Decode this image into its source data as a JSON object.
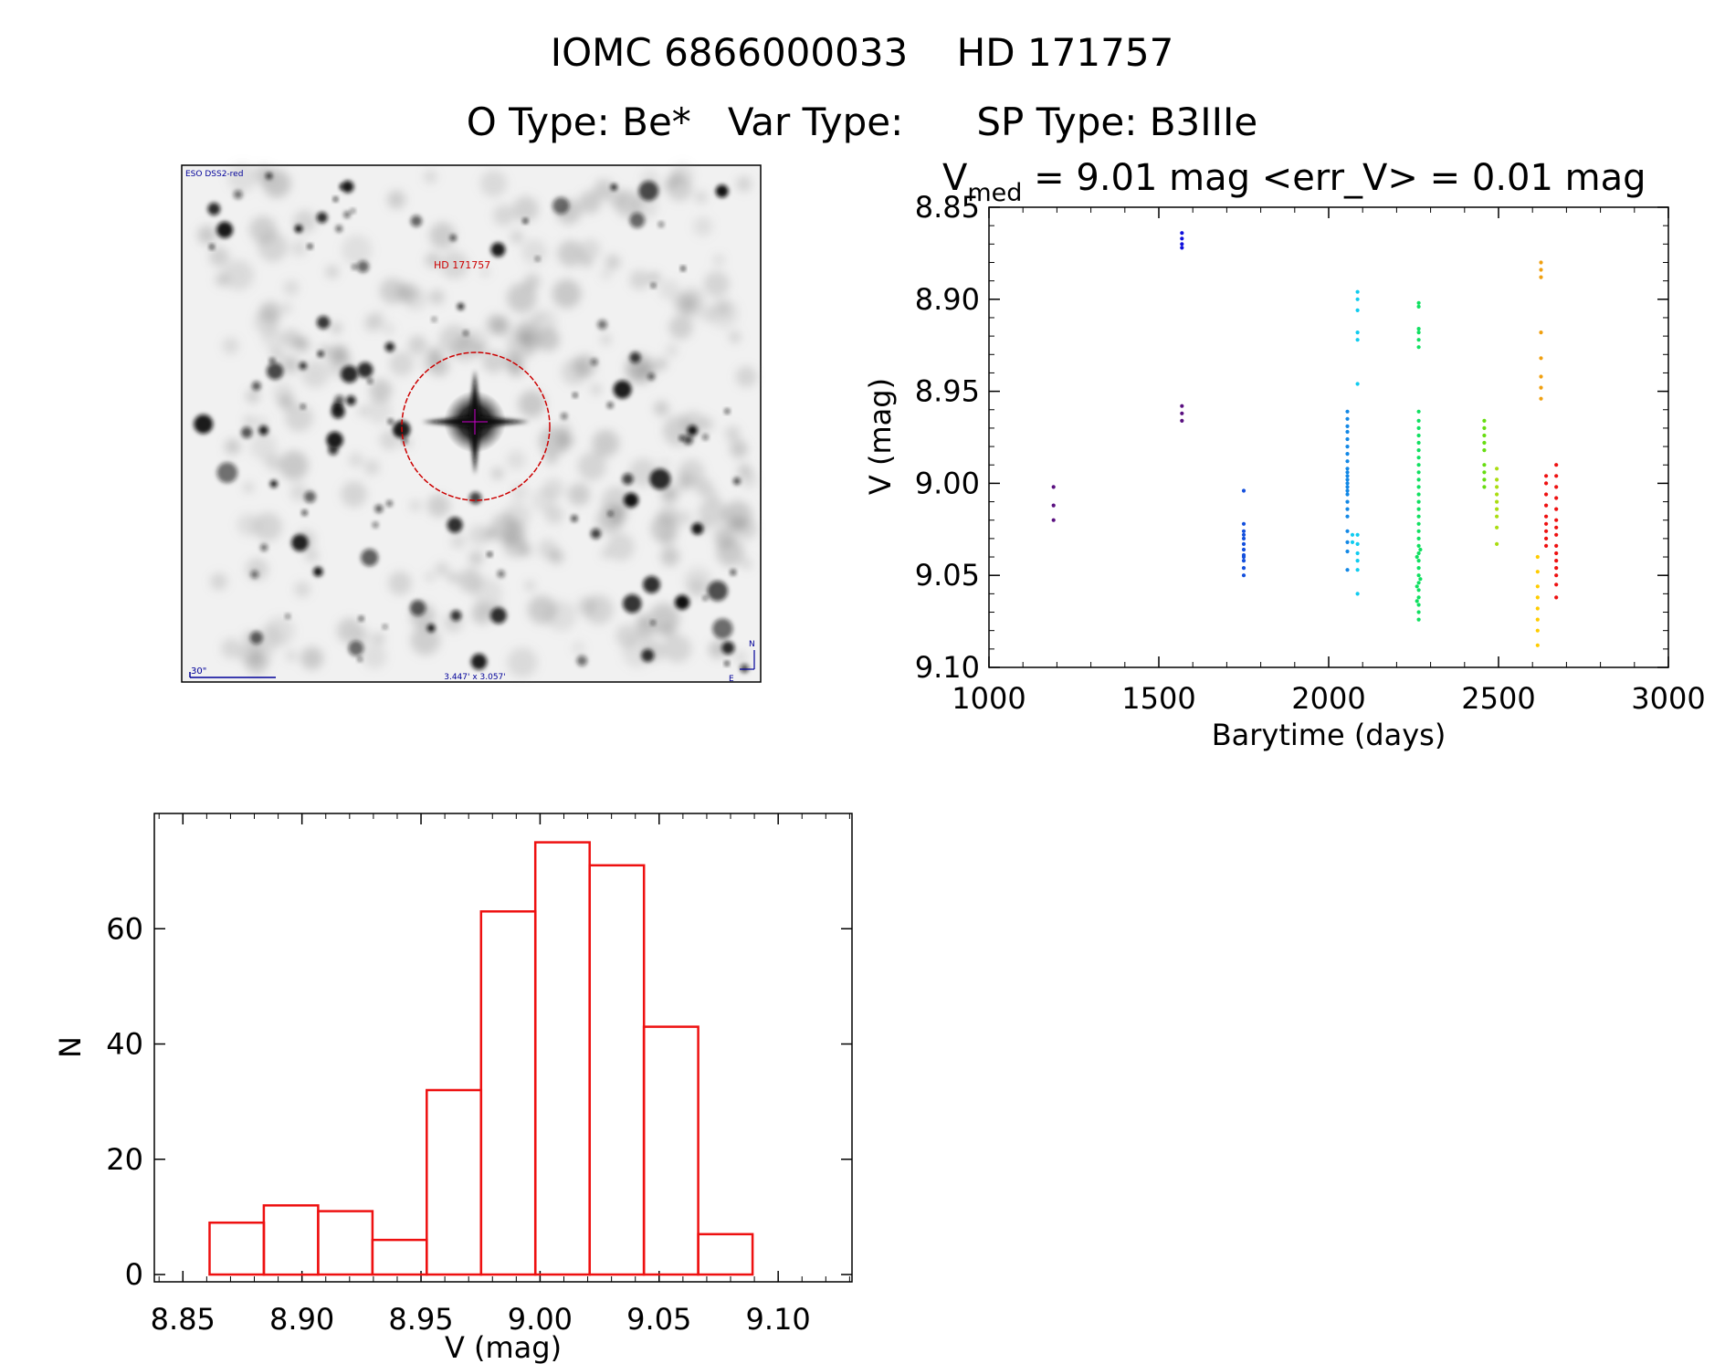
{
  "header": {
    "title": "IOMC 6866000033    HD 171757",
    "subtitle": "O Type: Be*   Var Type:      SP Type: B3IIIe"
  },
  "finding_chart": {
    "survey_label": "ESO DSS2-red",
    "target_label": "HD 171757",
    "scale_label": "30\"",
    "fov_label": "3.447' x 3.057'",
    "north_label": "N",
    "east_label": "E",
    "colors": {
      "circle": "#cc0000",
      "label": "#cc0000",
      "annotation": "#000099"
    }
  },
  "chart_data": [
    {
      "type": "scatter",
      "title_main": "V",
      "title_sub": "med",
      "title_rest": " = 9.01 mag <err_V> = 0.01 mag",
      "xlabel": "Barytime (days)",
      "ylabel": "V (mag)",
      "xlim": [
        1000,
        3000
      ],
      "ylim": [
        9.1,
        8.85
      ],
      "y_inverted": true,
      "xticks": [
        "1000",
        "1500",
        "2000",
        "2500",
        "3000"
      ],
      "yticks": [
        "8.85",
        "8.90",
        "8.95",
        "9.00",
        "9.05",
        "9.10"
      ],
      "groups": [
        {
          "color": "#5a1080",
          "points": [
            [
              1190,
              9.002
            ],
            [
              1190,
              9.012
            ],
            [
              1190,
              9.02
            ]
          ]
        },
        {
          "color": "#5a1080",
          "points": [
            [
              1568,
              8.958
            ],
            [
              1568,
              8.962
            ],
            [
              1568,
              8.966
            ]
          ]
        },
        {
          "color": "#1010dd",
          "points": [
            [
              1568,
              8.864
            ],
            [
              1568,
              8.867
            ],
            [
              1568,
              8.87
            ],
            [
              1568,
              8.872
            ]
          ]
        },
        {
          "color": "#1450dd",
          "points": [
            [
              1750,
              9.004
            ],
            [
              1750,
              9.022
            ],
            [
              1750,
              9.026
            ],
            [
              1750,
              9.03
            ],
            [
              1750,
              9.033
            ],
            [
              1750,
              9.036
            ],
            [
              1750,
              9.039
            ],
            [
              1750,
              9.042
            ],
            [
              1750,
              9.046
            ],
            [
              1750,
              9.05
            ],
            [
              1750,
              9.028
            ],
            [
              1750,
              9.04
            ]
          ]
        },
        {
          "color": "#1288e6",
          "points": [
            [
              2055,
              8.961
            ],
            [
              2055,
              8.965
            ],
            [
              2055,
              8.969
            ],
            [
              2055,
              8.972
            ],
            [
              2055,
              8.976
            ],
            [
              2055,
              8.98
            ],
            [
              2055,
              8.984
            ],
            [
              2055,
              8.988
            ],
            [
              2055,
              8.992
            ],
            [
              2055,
              8.994
            ],
            [
              2055,
              8.996
            ],
            [
              2055,
              8.998
            ],
            [
              2055,
              9.0
            ],
            [
              2055,
              9.002
            ],
            [
              2055,
              9.004
            ],
            [
              2055,
              9.006
            ],
            [
              2055,
              9.01
            ],
            [
              2055,
              9.014
            ],
            [
              2055,
              9.018
            ],
            [
              2055,
              9.026
            ],
            [
              2055,
              9.032
            ],
            [
              2055,
              9.037
            ],
            [
              2055,
              9.047
            ]
          ]
        },
        {
          "color": "#10ccf0",
          "points": [
            [
              2085,
              8.896
            ],
            [
              2085,
              8.9
            ],
            [
              2085,
              8.906
            ],
            [
              2085,
              8.918
            ],
            [
              2085,
              8.922
            ],
            [
              2085,
              8.946
            ],
            [
              2085,
              9.028
            ],
            [
              2085,
              9.033
            ],
            [
              2085,
              9.038
            ],
            [
              2085,
              9.042
            ],
            [
              2085,
              9.047
            ],
            [
              2085,
              9.06
            ],
            [
              2070,
              9.028
            ],
            [
              2070,
              9.032
            ]
          ]
        },
        {
          "color": "#10e060",
          "points": [
            [
              2265,
              8.902
            ],
            [
              2265,
              8.904
            ],
            [
              2265,
              8.916
            ],
            [
              2265,
              8.918
            ],
            [
              2265,
              8.922
            ],
            [
              2265,
              8.926
            ],
            [
              2265,
              8.961
            ],
            [
              2265,
              8.966
            ],
            [
              2265,
              8.97
            ],
            [
              2265,
              8.974
            ],
            [
              2265,
              8.978
            ],
            [
              2265,
              8.982
            ],
            [
              2265,
              8.986
            ],
            [
              2265,
              8.99
            ],
            [
              2265,
              8.994
            ],
            [
              2265,
              8.998
            ],
            [
              2265,
              9.002
            ],
            [
              2265,
              9.006
            ],
            [
              2265,
              9.01
            ],
            [
              2265,
              9.014
            ],
            [
              2265,
              9.018
            ],
            [
              2265,
              9.022
            ],
            [
              2265,
              9.026
            ],
            [
              2265,
              9.03
            ],
            [
              2265,
              9.034
            ],
            [
              2265,
              9.038
            ],
            [
              2265,
              9.042
            ],
            [
              2265,
              9.046
            ],
            [
              2265,
              9.05
            ],
            [
              2265,
              9.054
            ],
            [
              2265,
              9.058
            ],
            [
              2265,
              9.062
            ],
            [
              2265,
              9.066
            ],
            [
              2265,
              9.07
            ],
            [
              2265,
              9.074
            ],
            [
              2260,
              9.04
            ],
            [
              2260,
              9.056
            ],
            [
              2260,
              9.064
            ],
            [
              2270,
              9.036
            ],
            [
              2270,
              9.052
            ]
          ]
        },
        {
          "color": "#66dd10",
          "points": [
            [
              2458,
              8.966
            ],
            [
              2458,
              8.97
            ],
            [
              2458,
              8.974
            ],
            [
              2458,
              8.978
            ],
            [
              2458,
              8.982
            ],
            [
              2458,
              8.99
            ],
            [
              2458,
              8.994
            ],
            [
              2458,
              8.998
            ],
            [
              2458,
              9.002
            ]
          ]
        },
        {
          "color": "#aadd10",
          "points": [
            [
              2495,
              8.992
            ],
            [
              2495,
              8.998
            ],
            [
              2495,
              9.002
            ],
            [
              2495,
              9.006
            ],
            [
              2495,
              9.01
            ],
            [
              2495,
              9.014
            ],
            [
              2495,
              9.018
            ],
            [
              2495,
              9.024
            ],
            [
              2495,
              9.033
            ]
          ]
        },
        {
          "color": "#ffcc00",
          "points": [
            [
              2615,
              9.04
            ],
            [
              2615,
              9.048
            ],
            [
              2615,
              9.056
            ],
            [
              2615,
              9.062
            ],
            [
              2615,
              9.068
            ],
            [
              2615,
              9.074
            ],
            [
              2615,
              9.08
            ],
            [
              2615,
              9.088
            ]
          ]
        },
        {
          "color": "#f0a010",
          "points": [
            [
              2625,
              8.88
            ],
            [
              2625,
              8.884
            ],
            [
              2625,
              8.888
            ],
            [
              2625,
              8.932
            ],
            [
              2625,
              8.942
            ],
            [
              2625,
              8.948
            ],
            [
              2625,
              8.954
            ],
            [
              2625,
              8.918
            ]
          ]
        },
        {
          "color": "#ee1010",
          "points": [
            [
              2640,
              8.996
            ],
            [
              2640,
              9.0
            ],
            [
              2640,
              9.006
            ],
            [
              2640,
              9.012
            ],
            [
              2640,
              9.018
            ],
            [
              2640,
              9.022
            ],
            [
              2640,
              9.026
            ],
            [
              2640,
              9.03
            ],
            [
              2640,
              9.034
            ],
            [
              2670,
              8.99
            ],
            [
              2670,
              8.996
            ],
            [
              2670,
              9.002
            ],
            [
              2670,
              9.008
            ],
            [
              2670,
              9.014
            ],
            [
              2670,
              9.02
            ],
            [
              2670,
              9.024
            ],
            [
              2670,
              9.028
            ],
            [
              2670,
              9.034
            ],
            [
              2670,
              9.038
            ],
            [
              2670,
              9.042
            ],
            [
              2670,
              9.046
            ],
            [
              2670,
              9.05
            ],
            [
              2670,
              9.055
            ],
            [
              2670,
              9.062
            ]
          ]
        }
      ]
    },
    {
      "type": "bar",
      "xlabel": "V (mag)",
      "ylabel": "N",
      "xlim": [
        8.838,
        9.131
      ],
      "ylim": [
        0,
        80
      ],
      "xticks": [
        "8.85",
        "8.90",
        "8.95",
        "9.00",
        "9.05",
        "9.10"
      ],
      "yticks": [
        "0",
        "20",
        "40",
        "60"
      ],
      "color": "#ee1010",
      "bins": [
        {
          "x0": 8.8612,
          "x1": 8.884,
          "n": 9
        },
        {
          "x0": 8.884,
          "x1": 8.9068,
          "n": 12
        },
        {
          "x0": 8.9068,
          "x1": 8.9296,
          "n": 11
        },
        {
          "x0": 8.9296,
          "x1": 8.9524,
          "n": 6
        },
        {
          "x0": 8.9524,
          "x1": 8.9752,
          "n": 32
        },
        {
          "x0": 8.9752,
          "x1": 8.998,
          "n": 63
        },
        {
          "x0": 8.998,
          "x1": 9.0208,
          "n": 75
        },
        {
          "x0": 9.0208,
          "x1": 9.0436,
          "n": 71
        },
        {
          "x0": 9.0436,
          "x1": 9.0664,
          "n": 43
        },
        {
          "x0": 9.0664,
          "x1": 9.0892,
          "n": 7
        }
      ]
    }
  ]
}
